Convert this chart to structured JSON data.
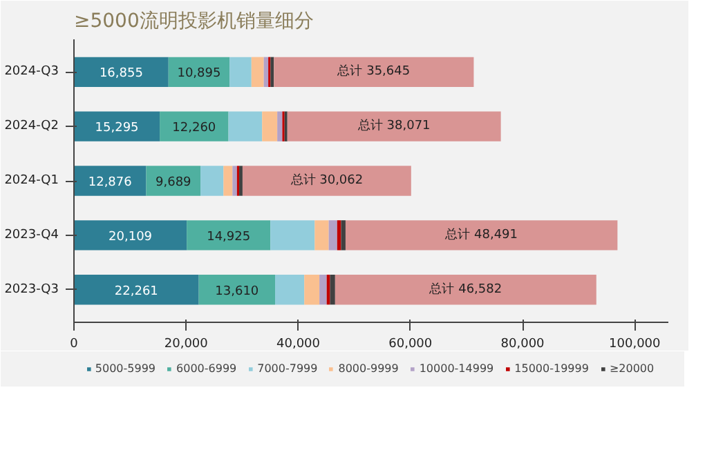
{
  "chart_data": {
    "type": "bar",
    "orientation": "horizontal",
    "stacked": true,
    "title": "≥5000流明投影机销量细分",
    "categories": [
      "2024-Q3",
      "2024-Q2",
      "2024-Q1",
      "2023-Q4",
      "2023-Q3"
    ],
    "series": [
      {
        "name": "5000-5999",
        "color": "#2e7f95",
        "values": [
          16855,
          15295,
          12876,
          20109,
          22261
        ],
        "value_labels": [
          "16,855",
          "15,295",
          "12,876",
          "20,109",
          "22,261"
        ]
      },
      {
        "name": "6000-6999",
        "color": "#4fb0a0",
        "values": [
          10895,
          12260,
          9689,
          14925,
          13610
        ],
        "value_labels": [
          "10,895",
          "12,260",
          "9,689",
          "14,925",
          "13,610"
        ]
      },
      {
        "name": "7000-7999",
        "color": "#92cddc",
        "values": [
          3900,
          6000,
          4100,
          7900,
          5200
        ]
      },
      {
        "name": "8000-9999",
        "color": "#fac090",
        "values": [
          2200,
          2700,
          1600,
          2500,
          2700
        ]
      },
      {
        "name": "10000-14999",
        "color": "#b3a2c7",
        "values": [
          800,
          900,
          800,
          1500,
          1300
        ]
      },
      {
        "name": "15000-19999",
        "color": "#c00000",
        "values": [
          400,
          400,
          400,
          700,
          600
        ]
      },
      {
        "name": "≥20000",
        "color": "#404040",
        "values": [
          600,
          500,
          600,
          800,
          900
        ]
      },
      {
        "color": "#d99594",
        "values": [
          35645,
          38071,
          30062,
          48491,
          46582
        ],
        "value_labels": [
          "总计 35,645",
          "总计 38,071",
          "总计 30,062",
          "总计 48,491",
          "总计 46,582"
        ]
      }
    ],
    "xlim": [
      0,
      106000
    ],
    "xticks": [
      {
        "value": 0,
        "label": "0"
      },
      {
        "value": 20000,
        "label": "20,000"
      },
      {
        "value": 40000,
        "label": "40,000"
      },
      {
        "value": 60000,
        "label": "60,000"
      },
      {
        "value": 80000,
        "label": "80,000"
      },
      {
        "value": 100000,
        "label": "100,000"
      }
    ],
    "legend": "bottom",
    "grid": false
  }
}
